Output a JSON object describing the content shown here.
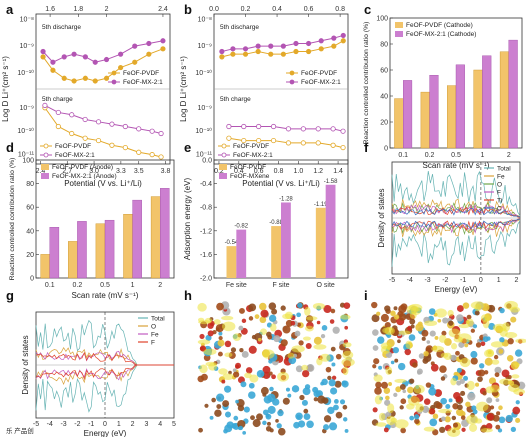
{
  "panels": {
    "a": "a",
    "b": "b",
    "c": "c",
    "d": "d",
    "e": "e",
    "f": "f",
    "g": "g",
    "h": "h",
    "i": "i"
  },
  "colors": {
    "pvdf": "#E3A92A",
    "mx": "#B355B3",
    "pvdf_light": "#F2C46A",
    "mx_light": "#CC7FD0"
  },
  "watermark": "乐 产品创",
  "chart_data": [
    {
      "id": "a",
      "type": "line",
      "ylabel": "Log D Li⁺(cm² s⁻¹)",
      "xlabel": "Potential (V vs. Li⁺/Li)",
      "top_ticks": [
        "1.6",
        "1.8",
        "2",
        "2.4"
      ],
      "bottom_ticks": [
        "2.4",
        "2.7",
        "3.0",
        "3.3",
        "3.5",
        "3.8"
      ],
      "y_ticks_upper": [
        "10⁻⁸",
        "10⁻⁹",
        "10⁻¹⁰"
      ],
      "y_ticks_lower": [
        "10⁻⁸",
        "10⁻⁹",
        "10⁻¹⁰",
        "10⁻¹¹"
      ],
      "annotations": [
        "5th discharge",
        "5th charge"
      ],
      "legend_upper": [
        "FeOF-PVDF",
        "FeOF-MX-2:1"
      ],
      "legend_lower": [
        "FeOF-PVDF",
        "FeOF-MX-2:1"
      ],
      "series": [
        {
          "name": "FeOF-PVDF",
          "part": "discharge",
          "x": [
            1.55,
            1.62,
            1.7,
            1.77,
            1.85,
            1.92,
            2.0,
            2.1,
            2.2,
            2.3,
            2.4
          ],
          "y": [
            -9.4,
            -9.9,
            -10.2,
            -10.3,
            -10.2,
            -10.3,
            -10.2,
            -9.8,
            -9.6,
            -9.3,
            -9.1
          ]
        },
        {
          "name": "FeOF-MX-2:1",
          "part": "discharge",
          "x": [
            1.55,
            1.62,
            1.7,
            1.77,
            1.85,
            1.92,
            2.0,
            2.1,
            2.2,
            2.3,
            2.4
          ],
          "y": [
            -9.2,
            -9.6,
            -9.4,
            -9.3,
            -9.4,
            -9.6,
            -9.5,
            -9.3,
            -9.0,
            -8.9,
            -8.8
          ]
        },
        {
          "name": "FeOF-PVDF",
          "part": "charge",
          "x": [
            2.45,
            2.6,
            2.75,
            2.9,
            3.05,
            3.2,
            3.35,
            3.5,
            3.65,
            3.75
          ],
          "y": [
            -9.0,
            -9.8,
            -10.1,
            -10.3,
            -10.4,
            -10.6,
            -10.7,
            -10.9,
            -11.0,
            -11.1
          ]
        },
        {
          "name": "FeOF-MX-2:1",
          "part": "charge",
          "x": [
            2.45,
            2.6,
            2.75,
            2.9,
            3.05,
            3.2,
            3.35,
            3.5,
            3.65,
            3.75
          ],
          "y": [
            -8.9,
            -9.2,
            -9.3,
            -9.5,
            -9.6,
            -9.7,
            -9.8,
            -9.9,
            -10.0,
            -10.1
          ]
        }
      ]
    },
    {
      "id": "b",
      "type": "line",
      "ylabel": "Log D Li⁺(cm² s⁻¹)",
      "xlabel": "Potential (V vs. Li⁺/Li)",
      "top_ticks": [
        "0.0",
        "0.2",
        "0.4",
        "0.6",
        "0.8"
      ],
      "bottom_ticks": [
        "0.2",
        "0.4",
        "0.6",
        "0.8",
        "1.0",
        "1.2",
        "1.4"
      ],
      "y_ticks": [
        "10⁻⁸",
        "10⁻⁹",
        "10⁻¹⁰",
        "10⁻¹¹"
      ],
      "annotations": [
        "5th discharge",
        "5th charge"
      ],
      "legend_upper": [
        "FeOF-PVDF",
        "FeOF-MX-2:1"
      ],
      "legend_lower": [
        "FeOF-PVDF",
        "FeOF-MX-2:1"
      ],
      "series": [
        {
          "name": "FeOF-PVDF",
          "part": "discharge",
          "x": [
            0.05,
            0.12,
            0.2,
            0.28,
            0.36,
            0.44,
            0.52,
            0.6,
            0.68,
            0.76,
            0.82
          ],
          "y": [
            -9.4,
            -9.3,
            -9.3,
            -9.2,
            -9.3,
            -9.3,
            -9.2,
            -9.2,
            -9.1,
            -9.0,
            -8.8
          ]
        },
        {
          "name": "FeOF-MX-2:1",
          "part": "discharge",
          "x": [
            0.05,
            0.12,
            0.2,
            0.28,
            0.36,
            0.44,
            0.52,
            0.6,
            0.68,
            0.76,
            0.82
          ],
          "y": [
            -9.2,
            -9.1,
            -9.1,
            -9.0,
            -9.0,
            -9.0,
            -8.9,
            -8.9,
            -8.8,
            -8.7,
            -8.6
          ]
        },
        {
          "name": "FeOF-PVDF",
          "part": "charge",
          "x": [
            0.3,
            0.45,
            0.6,
            0.75,
            0.9,
            1.05,
            1.2,
            1.35,
            1.45
          ],
          "y": [
            -10.3,
            -10.4,
            -10.4,
            -10.4,
            -10.5,
            -10.5,
            -10.5,
            -10.6,
            -10.7
          ]
        },
        {
          "name": "FeOF-MX-2:1",
          "part": "charge",
          "x": [
            0.3,
            0.45,
            0.6,
            0.75,
            0.9,
            1.05,
            1.2,
            1.35,
            1.45
          ],
          "y": [
            -9.8,
            -9.8,
            -9.8,
            -9.8,
            -9.9,
            -9.9,
            -9.9,
            -9.9,
            -10.0
          ]
        }
      ]
    },
    {
      "id": "c",
      "type": "bar",
      "categories": [
        "0.1",
        "0.2",
        "0.5",
        "1",
        "2"
      ],
      "xlabel": "Scan rate (mV s⁻¹)",
      "ylabel": "Reaction controlled contribution ratio (%)",
      "ylim": [
        0,
        100
      ],
      "yticks": [
        0,
        20,
        40,
        60,
        80,
        100
      ],
      "series": [
        {
          "name": "FeOF-PVDF (Cathode)",
          "values": [
            38,
            43,
            48,
            60,
            74
          ]
        },
        {
          "name": "FeOF-MX-2:1 (Cathode)",
          "values": [
            52,
            56,
            64,
            71,
            83
          ]
        }
      ]
    },
    {
      "id": "d",
      "type": "bar",
      "categories": [
        "0.1",
        "0.2",
        "0.5",
        "1",
        "2"
      ],
      "xlabel": "Scan rate (mV s⁻¹)",
      "ylabel": "Reaction controlled contribution ratio (%)",
      "ylim": [
        0,
        100
      ],
      "yticks": [
        0,
        20,
        40,
        60,
        80,
        100
      ],
      "series": [
        {
          "name": "FeOF-PVDF (Anode)",
          "values": [
            20,
            31,
            46,
            54,
            69
          ]
        },
        {
          "name": "FeOF-MX-2:1 (Anode)",
          "values": [
            43,
            48,
            49,
            66,
            76
          ]
        }
      ]
    },
    {
      "id": "e",
      "type": "bar",
      "categories": [
        "Fe site",
        "F site",
        "O site"
      ],
      "ylabel": "Adsorption energy (eV)",
      "ylim": [
        0,
        -2.0
      ],
      "yticks": [
        "0.0",
        "-0.4",
        "-0.8",
        "-1.2",
        "-1.6",
        "-2.0"
      ],
      "series": [
        {
          "name": "FeOF-PVDF",
          "values": [
            -0.54,
            -0.88,
            -1.19
          ]
        },
        {
          "name": "FeOF-MXene",
          "values": [
            -0.82,
            -1.28,
            -1.58
          ]
        }
      ],
      "labels": [
        [
          "-0.54",
          "-0.82"
        ],
        [
          "-0.88",
          "-1.28"
        ],
        [
          "-1.19",
          "-1.58"
        ]
      ]
    },
    {
      "id": "f",
      "type": "line",
      "xlabel": "Energy (eV)",
      "ylabel": "Density of states",
      "x_ticks": [
        "-5",
        "-4",
        "-3",
        "-2",
        "-1",
        "0",
        "1",
        "2"
      ],
      "legend": [
        "Total",
        "Fe",
        "O",
        "F",
        "Ti",
        "C"
      ],
      "series_colors": [
        "#66B3B3",
        "#D9A23A",
        "#6FA74A",
        "#C25CC0",
        "#E0442B",
        "#3A6FC2"
      ]
    },
    {
      "id": "g",
      "type": "line",
      "xlabel": "Energy (eV)",
      "ylabel": "Density of states",
      "x_ticks": [
        "-5",
        "-4",
        "-3",
        "-2",
        "-1",
        "0",
        "1",
        "2",
        "3",
        "4",
        "5"
      ],
      "legend": [
        "Total",
        "O",
        "Fe",
        "F"
      ],
      "series_colors": [
        "#66B3B3",
        "#D9A23A",
        "#C25CC0",
        "#E0442B"
      ]
    }
  ]
}
